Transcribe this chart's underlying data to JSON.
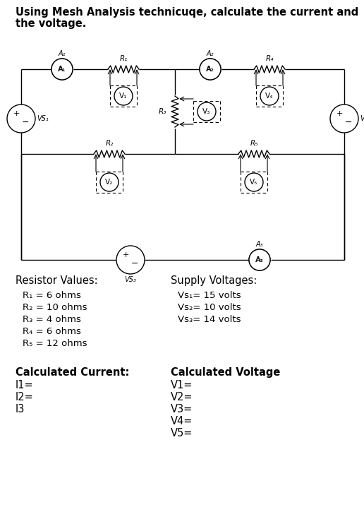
{
  "title_line1": "Using Mesh Analysis technicuqe, calculate the current and",
  "title_line2": "the voltage.",
  "title_fontsize": 10.5,
  "resistor_header": "Resistor Values:",
  "voltage_header": "Supply Voltages:",
  "r1_label": "R₁ = 6 ohms",
  "r2_label": "R₂ = 10 ohms",
  "r3_label": "R₃ = 4 ohms",
  "r4_label": "R₄ = 6 ohms",
  "r5_label": "R₅ = 12 ohms",
  "vs1_label": "Vs₁= 15 volts",
  "vs2_label": "Vs₂= 10 volts",
  "vs3_label": "Vs₃= 14 volts",
  "calc_current_header": "Calculated Current:",
  "i1_label": "I1=",
  "i2_label": "I2=",
  "i3_label": "I3",
  "calc_voltage_header": "Calculated Voltage",
  "v1_label": "V1=",
  "v2_label": "V2=",
  "v3_label": "V3=",
  "v4_label": "V4=",
  "v5_label": "V5=",
  "bg_color": "#ffffff",
  "line_color": "#000000",
  "text_color": "#000000"
}
